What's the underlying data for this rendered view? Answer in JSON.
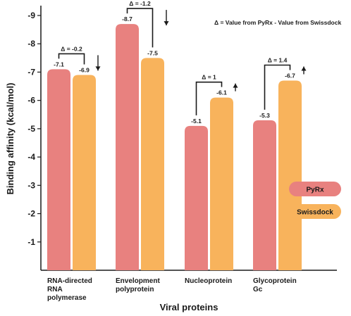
{
  "chart_data": {
    "type": "bar",
    "categories": [
      [
        "RNA-directed",
        "RNA",
        "polymerase"
      ],
      [
        "Envelopment",
        "polyprotein"
      ],
      [
        "Nucleoprotein"
      ],
      [
        "Glycoprotein",
        "Gc"
      ]
    ],
    "series": [
      {
        "name": "PyRx",
        "values": [
          -7.1,
          -8.7,
          -5.1,
          -5.3
        ],
        "color": "#e8817f"
      },
      {
        "name": "Swissdock",
        "values": [
          -6.9,
          -7.5,
          -6.1,
          -6.7
        ],
        "color": "#f8b35c"
      }
    ],
    "data_labels": {
      "PyRx": [
        "-7.1",
        "-8.7",
        "-5.1",
        "-5.3"
      ],
      "Swissdock": [
        "-6.9",
        "-7.5",
        "-6.1",
        "-6.7"
      ]
    },
    "deltas": [
      {
        "label": "Δ = -0.2",
        "arrow": "down"
      },
      {
        "label": "Δ = -1.2",
        "arrow": "down"
      },
      {
        "label": "Δ = 1",
        "arrow": "up"
      },
      {
        "label": "Δ = 1.4",
        "arrow": "up"
      }
    ],
    "note": "Δ = Value from PyRx - Value from Swissdock",
    "xlabel": "Viral proteins",
    "ylabel": "Binding affinity (kcal/mol)",
    "y_ticks": [
      "-9",
      "-8",
      "-7",
      "-6",
      "-5",
      "-4",
      "-3",
      "-2",
      "-1"
    ],
    "ylim": [
      0,
      -9.3
    ],
    "grid": false,
    "legend_position": "right",
    "axis_color": "#1a1a1a"
  }
}
